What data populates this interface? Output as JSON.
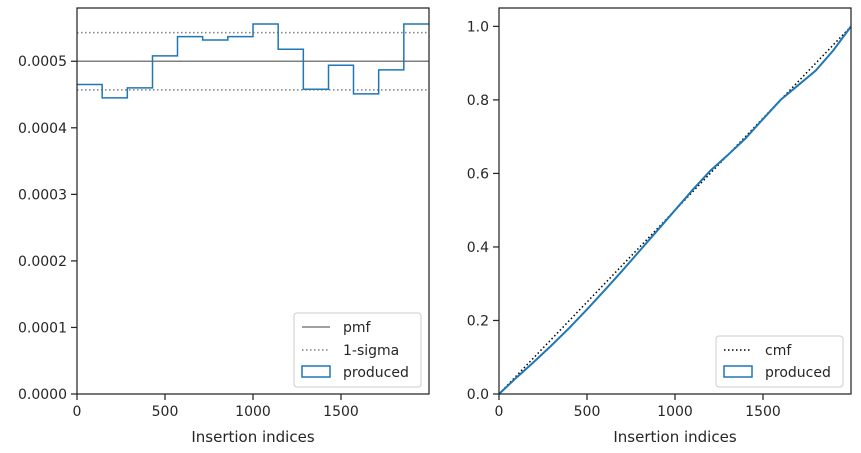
{
  "chart_data": [
    {
      "type": "line",
      "xlabel": "Insertion indices",
      "ylabel": "",
      "xlim": [
        0,
        2000
      ],
      "ylim": [
        0,
        0.00058
      ],
      "grid": false,
      "legend_position": "bottom-right",
      "x_ticks": [
        0,
        500,
        1000,
        1500
      ],
      "x_tick_labels": [
        "0",
        "500",
        "1000",
        "1500"
      ],
      "y_ticks": [
        0,
        0.0001,
        0.0002,
        0.0003,
        0.0004,
        0.0005
      ],
      "y_tick_labels": [
        "0.0000",
        "0.0001",
        "0.0002",
        "0.0003",
        "0.0004",
        "0.0005"
      ],
      "pmf": 0.0005,
      "sigma_band": [
        0.000457,
        0.000543
      ],
      "series": [
        {
          "name": "produced",
          "style": "step histogram",
          "color": "#1f77b4",
          "bin_edges": [
            0,
            143,
            286,
            429,
            571,
            714,
            857,
            1000,
            1143,
            1286,
            1429,
            1571,
            1714,
            1857,
            2000
          ],
          "values": [
            0.000465,
            0.000445,
            0.00046,
            0.000508,
            0.000537,
            0.000532,
            0.000537,
            0.000556,
            0.000518,
            0.000458,
            0.000494,
            0.000451,
            0.000487,
            0.000556
          ]
        }
      ],
      "legend": [
        {
          "label": "pmf",
          "style": "solid",
          "color": "#808080"
        },
        {
          "label": "1-sigma",
          "style": "dotted",
          "color": "#808080"
        },
        {
          "label": "produced",
          "style": "box",
          "color": "#1f77b4"
        }
      ]
    },
    {
      "type": "line",
      "xlabel": "Insertion indices",
      "ylabel": "",
      "xlim": [
        0,
        2000
      ],
      "ylim": [
        0,
        1.05
      ],
      "grid": false,
      "legend_position": "bottom-right",
      "x_ticks": [
        0,
        500,
        1000,
        1500
      ],
      "x_tick_labels": [
        "0",
        "500",
        "1000",
        "1500"
      ],
      "y_ticks": [
        0,
        0.2,
        0.4,
        0.6,
        0.8,
        1.0
      ],
      "y_tick_labels": [
        "0.0",
        "0.2",
        "0.4",
        "0.6",
        "0.8",
        "1.0"
      ],
      "series": [
        {
          "name": "cmf",
          "style": "dotted",
          "color": "#000000",
          "x": [
            0,
            2000
          ],
          "y": [
            0,
            1.0
          ]
        },
        {
          "name": "produced",
          "style": "solid",
          "color": "#1f77b4",
          "x": [
            0,
            100,
            200,
            300,
            400,
            500,
            600,
            700,
            800,
            900,
            1000,
            1100,
            1200,
            1300,
            1400,
            1500,
            1600,
            1700,
            1800,
            1900,
            2000
          ],
          "y": [
            0,
            0.045,
            0.088,
            0.133,
            0.18,
            0.23,
            0.282,
            0.335,
            0.39,
            0.445,
            0.5,
            0.555,
            0.607,
            0.65,
            0.695,
            0.748,
            0.8,
            0.84,
            0.88,
            0.935,
            1.0
          ]
        }
      ],
      "legend": [
        {
          "label": "cmf",
          "style": "dotted",
          "color": "#000000"
        },
        {
          "label": "produced",
          "style": "box",
          "color": "#1f77b4"
        }
      ]
    }
  ]
}
